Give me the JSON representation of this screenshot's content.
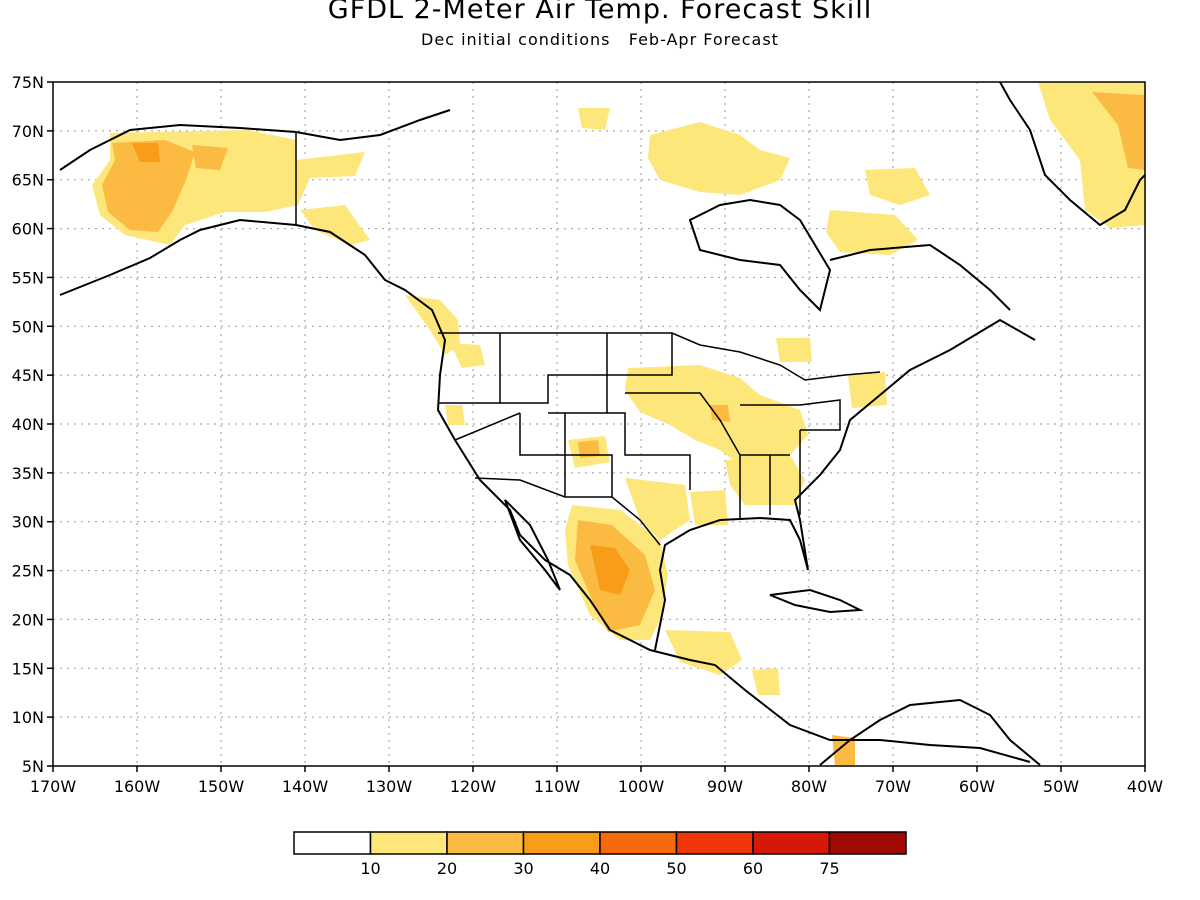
{
  "title": "GFDL 2-Meter Air Temp. Forecast Skill",
  "subtitle": "Dec initial conditions   Feb-Apr Forecast",
  "map": {
    "lon_range": [
      -170,
      -40
    ],
    "lat_range": [
      5,
      75
    ],
    "lon_ticks": [
      {
        "value": -170,
        "label": "170W"
      },
      {
        "value": -160,
        "label": "160W"
      },
      {
        "value": -150,
        "label": "150W"
      },
      {
        "value": -140,
        "label": "140W"
      },
      {
        "value": -130,
        "label": "130W"
      },
      {
        "value": -120,
        "label": "120W"
      },
      {
        "value": -110,
        "label": "110W"
      },
      {
        "value": -100,
        "label": "100W"
      },
      {
        "value": -90,
        "label": "90W"
      },
      {
        "value": -80,
        "label": "80W"
      },
      {
        "value": -70,
        "label": "70W"
      },
      {
        "value": -60,
        "label": "60W"
      },
      {
        "value": -50,
        "label": "50W"
      },
      {
        "value": -40,
        "label": "40W"
      }
    ],
    "lat_ticks": [
      {
        "value": 5,
        "label": "5N"
      },
      {
        "value": 10,
        "label": "10N"
      },
      {
        "value": 15,
        "label": "15N"
      },
      {
        "value": 20,
        "label": "20N"
      },
      {
        "value": 25,
        "label": "25N"
      },
      {
        "value": 30,
        "label": "30N"
      },
      {
        "value": 35,
        "label": "35N"
      },
      {
        "value": 40,
        "label": "40N"
      },
      {
        "value": 45,
        "label": "45N"
      },
      {
        "value": 50,
        "label": "50N"
      },
      {
        "value": 55,
        "label": "55N"
      },
      {
        "value": 60,
        "label": "60N"
      },
      {
        "value": 65,
        "label": "65N"
      },
      {
        "value": 70,
        "label": "70N"
      },
      {
        "value": 75,
        "label": "75N"
      }
    ],
    "gridlines": "dotted"
  },
  "legend": {
    "boundaries": [
      "10",
      "20",
      "30",
      "40",
      "50",
      "60",
      "75"
    ],
    "colors": [
      "#ffffff",
      "#fde67a",
      "#fbbb43",
      "#f99c18",
      "#f5690c",
      "#f03508",
      "#d41a06",
      "#a00a05"
    ]
  },
  "colors": {
    "skill_10_20": "#fde67a",
    "skill_20_30": "#fbbb43",
    "skill_30_40": "#f99c18"
  }
}
